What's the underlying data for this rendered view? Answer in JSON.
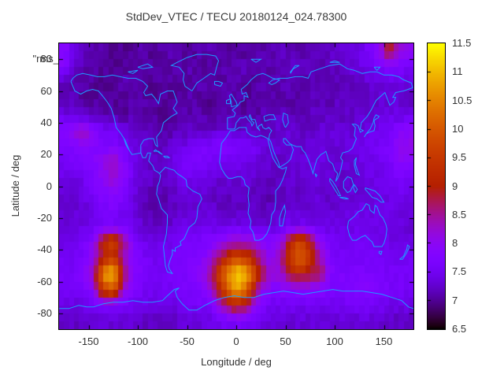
{
  "title": "StdDev_VTEC / TECU 20180124_024.78300",
  "annotation": "\"rms_",
  "axes": {
    "xlabel": "Longitude / deg",
    "ylabel": "Latitude / deg",
    "x_ticks": [
      -150,
      -100,
      -50,
      0,
      50,
      100,
      150
    ],
    "y_ticks": [
      80,
      60,
      40,
      20,
      0,
      -20,
      -40,
      -60,
      -80
    ],
    "x_range": [
      -180,
      180
    ],
    "y_range": [
      -90,
      90
    ]
  },
  "colorbar": {
    "min": 6.5,
    "max": 11.5,
    "ticks": [
      6.5,
      7,
      7.5,
      8,
      8.5,
      9,
      9.5,
      10,
      10.5,
      11,
      11.5
    ],
    "palette": "gnuplot_pm3d_default"
  },
  "colors": {
    "coastline": "#1e9aff",
    "border": "#000000",
    "background": "#ffffff",
    "text": "#383838"
  },
  "chart_data": {
    "type": "heatmap",
    "title": "StdDev_VTEC / TECU 20180124_024.78300",
    "xlabel": "Longitude / deg",
    "ylabel": "Latitude / deg",
    "value_units": "TECU",
    "value_range": [
      6.5,
      11.5
    ],
    "overlay": "world coastline outlines",
    "cell_size_deg": 10,
    "lon_centers": [
      -175,
      -165,
      -155,
      -145,
      -135,
      -125,
      -115,
      -105,
      -95,
      -85,
      -75,
      -65,
      -55,
      -45,
      -35,
      -25,
      -15,
      -5,
      5,
      15,
      25,
      35,
      45,
      55,
      65,
      75,
      85,
      95,
      105,
      115,
      125,
      135,
      145,
      155,
      165,
      175
    ],
    "lat_centers": [
      85,
      75,
      65,
      55,
      45,
      35,
      25,
      15,
      5,
      -5,
      -15,
      -25,
      -35,
      -45,
      -55,
      -65,
      -75,
      -85
    ],
    "values": [
      [
        7.9,
        7.4,
        7.2,
        7.1,
        7.1,
        7.0,
        7.0,
        7.0,
        7.1,
        7.0,
        7.1,
        7.1,
        7.0,
        7.0,
        7.1,
        7.1,
        7.1,
        7.0,
        7.0,
        7.1,
        7.1,
        7.1,
        7.2,
        7.1,
        7.1,
        7.2,
        7.2,
        7.2,
        7.3,
        7.3,
        7.4,
        7.7,
        8.0,
        9.0,
        8.2,
        8.0
      ],
      [
        7.8,
        7.3,
        7.1,
        7.1,
        7.0,
        7.0,
        7.0,
        7.1,
        7.1,
        7.0,
        7.0,
        7.1,
        7.1,
        7.1,
        7.0,
        7.0,
        7.1,
        7.1,
        7.2,
        7.1,
        7.1,
        7.1,
        7.2,
        7.2,
        7.2,
        7.2,
        7.1,
        7.2,
        7.2,
        7.3,
        7.4,
        7.5,
        7.6,
        7.8,
        7.7,
        7.6
      ],
      [
        7.2,
        7.1,
        7.1,
        7.0,
        7.0,
        7.0,
        7.1,
        7.1,
        7.0,
        7.0,
        7.1,
        7.0,
        7.0,
        7.1,
        7.1,
        7.0,
        7.1,
        7.1,
        7.1,
        7.0,
        7.1,
        7.1,
        7.1,
        7.2,
        7.1,
        7.1,
        7.2,
        7.1,
        7.1,
        7.2,
        7.2,
        7.3,
        7.3,
        7.4,
        7.4,
        7.3
      ],
      [
        7.2,
        7.1,
        7.0,
        7.0,
        7.1,
        7.0,
        7.0,
        7.1,
        7.1,
        7.0,
        7.0,
        7.0,
        7.1,
        7.1,
        7.0,
        7.0,
        7.1,
        7.1,
        7.0,
        7.0,
        7.1,
        7.1,
        7.1,
        7.1,
        7.1,
        7.2,
        7.1,
        7.1,
        7.2,
        7.2,
        7.2,
        7.2,
        7.3,
        7.3,
        7.3,
        7.2
      ],
      [
        7.4,
        7.3,
        7.2,
        7.1,
        7.1,
        7.1,
        7.0,
        7.1,
        7.1,
        7.1,
        7.0,
        7.0,
        7.1,
        7.1,
        7.1,
        7.0,
        7.1,
        7.1,
        7.1,
        7.1,
        7.1,
        7.2,
        7.2,
        7.1,
        7.1,
        7.2,
        7.2,
        7.2,
        7.2,
        7.2,
        7.3,
        7.3,
        7.3,
        7.4,
        7.4,
        7.4
      ],
      [
        7.9,
        8.2,
        8.3,
        7.9,
        7.6,
        7.6,
        7.4,
        7.3,
        7.2,
        7.1,
        7.1,
        7.1,
        7.2,
        7.2,
        7.2,
        7.2,
        7.3,
        7.3,
        7.2,
        7.2,
        7.2,
        7.2,
        7.3,
        7.3,
        7.2,
        7.2,
        7.3,
        7.3,
        7.3,
        7.3,
        7.3,
        7.4,
        7.5,
        7.6,
        7.8,
        7.9
      ],
      [
        7.7,
        7.8,
        7.9,
        7.8,
        7.7,
        7.7,
        7.6,
        7.4,
        7.3,
        7.2,
        7.2,
        7.3,
        7.4,
        7.5,
        7.6,
        7.7,
        7.8,
        7.8,
        7.7,
        7.6,
        7.4,
        7.3,
        7.3,
        7.3,
        7.3,
        7.3,
        7.4,
        7.3,
        7.3,
        7.4,
        7.4,
        7.5,
        7.6,
        7.7,
        8.0,
        8.1
      ],
      [
        7.5,
        7.6,
        7.7,
        7.8,
        8.1,
        8.4,
        7.9,
        7.5,
        7.3,
        7.2,
        7.2,
        7.4,
        7.6,
        7.7,
        7.7,
        7.6,
        7.5,
        7.5,
        7.5,
        7.4,
        7.3,
        7.3,
        7.2,
        7.3,
        7.3,
        7.4,
        7.4,
        7.3,
        7.3,
        7.3,
        7.4,
        7.4,
        7.5,
        7.6,
        7.9,
        7.8
      ],
      [
        7.4,
        7.4,
        7.5,
        7.7,
        8.0,
        8.2,
        7.9,
        7.5,
        7.3,
        7.2,
        7.2,
        7.3,
        7.5,
        7.5,
        7.4,
        7.3,
        7.3,
        7.3,
        7.3,
        7.3,
        7.2,
        7.2,
        7.2,
        7.3,
        7.3,
        7.3,
        7.3,
        7.3,
        7.2,
        7.3,
        7.3,
        7.4,
        7.4,
        7.5,
        7.6,
        7.5
      ],
      [
        7.3,
        7.3,
        7.4,
        7.6,
        7.8,
        7.9,
        7.7,
        7.4,
        7.2,
        7.1,
        7.1,
        7.2,
        7.3,
        7.3,
        7.3,
        7.2,
        7.2,
        7.2,
        7.2,
        7.2,
        7.1,
        7.1,
        7.2,
        7.2,
        7.2,
        7.3,
        7.3,
        7.2,
        7.2,
        7.3,
        7.3,
        7.3,
        7.4,
        7.4,
        7.5,
        7.4
      ],
      [
        7.3,
        7.3,
        7.3,
        7.5,
        7.6,
        7.7,
        7.5,
        7.4,
        7.2,
        7.1,
        7.1,
        7.2,
        7.3,
        7.3,
        7.3,
        7.3,
        7.2,
        7.2,
        7.2,
        7.2,
        7.2,
        7.2,
        7.2,
        7.3,
        7.3,
        7.3,
        7.4,
        7.3,
        7.3,
        7.4,
        7.4,
        7.4,
        7.4,
        7.4,
        7.4,
        7.3
      ],
      [
        7.3,
        7.4,
        7.4,
        7.5,
        7.6,
        7.6,
        7.5,
        7.4,
        7.3,
        7.2,
        7.2,
        7.3,
        7.4,
        7.4,
        7.4,
        7.4,
        7.4,
        7.4,
        7.4,
        7.4,
        7.3,
        7.3,
        7.4,
        7.5,
        7.5,
        7.4,
        7.4,
        7.4,
        7.4,
        7.4,
        7.5,
        7.5,
        7.4,
        7.4,
        7.4,
        7.3
      ],
      [
        7.4,
        7.5,
        7.6,
        7.9,
        9.2,
        9.8,
        8.6,
        7.8,
        7.5,
        7.4,
        7.4,
        7.5,
        7.6,
        7.6,
        7.7,
        7.8,
        8.0,
        8.2,
        8.3,
        8.2,
        7.9,
        7.8,
        8.0,
        9.2,
        9.9,
        9.0,
        7.9,
        7.6,
        7.5,
        7.5,
        7.5,
        7.5,
        7.5,
        7.4,
        7.4,
        7.4
      ],
      [
        7.5,
        7.5,
        7.7,
        8.1,
        9.0,
        9.4,
        8.4,
        7.8,
        7.6,
        7.5,
        7.5,
        7.6,
        7.6,
        7.7,
        7.8,
        8.1,
        8.8,
        9.6,
        9.7,
        9.2,
        8.4,
        7.9,
        8.4,
        9.6,
        10.2,
        9.3,
        8.4,
        7.7,
        7.6,
        7.6,
        7.6,
        7.6,
        7.6,
        7.5,
        7.5,
        7.5
      ],
      [
        7.6,
        7.6,
        7.8,
        8.4,
        10.6,
        11.2,
        8.8,
        7.9,
        7.7,
        7.6,
        7.6,
        7.6,
        7.7,
        7.8,
        8.0,
        8.6,
        9.8,
        10.9,
        11.3,
        10.3,
        8.8,
        8.2,
        8.2,
        9.0,
        9.2,
        8.8,
        8.8,
        7.8,
        7.7,
        7.7,
        7.7,
        7.7,
        7.6,
        7.6,
        7.6,
        7.6
      ],
      [
        7.5,
        7.5,
        7.6,
        8.0,
        9.6,
        10.0,
        8.3,
        7.7,
        7.6,
        7.5,
        7.5,
        7.5,
        7.6,
        7.7,
        7.8,
        8.2,
        9.4,
        10.6,
        10.8,
        9.4,
        8.2,
        7.8,
        7.8,
        7.9,
        7.9,
        7.9,
        7.8,
        7.7,
        7.7,
        7.7,
        7.8,
        7.8,
        7.7,
        7.6,
        7.6,
        7.5
      ],
      [
        7.4,
        7.4,
        7.4,
        7.5,
        7.7,
        7.7,
        7.6,
        7.5,
        7.4,
        7.4,
        7.4,
        7.4,
        7.5,
        7.5,
        7.6,
        7.7,
        8.3,
        9.0,
        9.0,
        8.3,
        7.7,
        7.5,
        7.5,
        7.5,
        7.5,
        7.5,
        7.5,
        7.5,
        7.5,
        7.6,
        7.6,
        7.6,
        7.5,
        7.4,
        7.4,
        7.4
      ],
      [
        7.2,
        7.2,
        7.2,
        7.3,
        7.3,
        7.3,
        7.3,
        7.3,
        7.2,
        7.2,
        7.2,
        7.2,
        7.3,
        7.3,
        7.3,
        7.4,
        7.5,
        7.6,
        7.6,
        7.5,
        7.4,
        7.3,
        7.3,
        7.3,
        7.3,
        7.3,
        7.3,
        7.3,
        7.3,
        7.3,
        7.3,
        7.3,
        7.3,
        7.2,
        7.2,
        7.2
      ]
    ]
  }
}
